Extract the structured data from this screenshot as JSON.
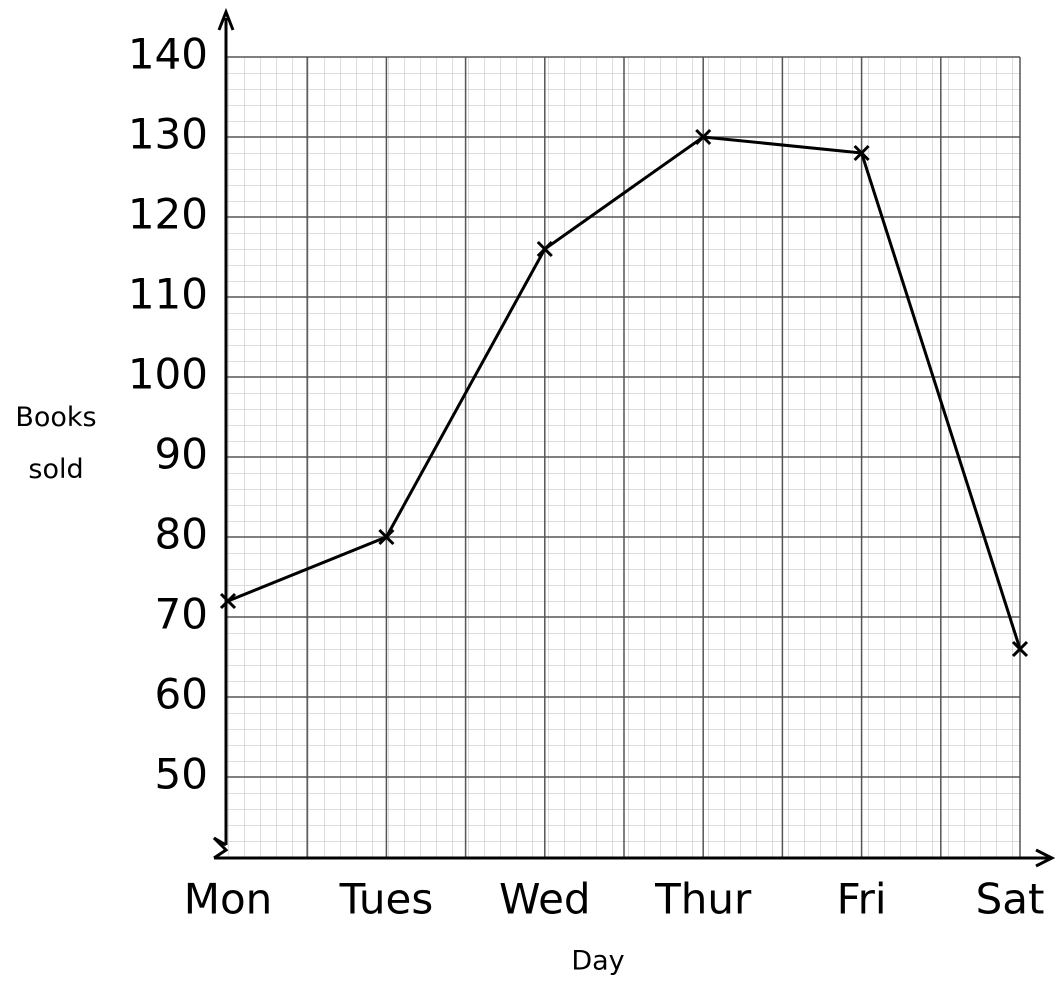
{
  "chart_data": {
    "type": "line",
    "x_label": "Day",
    "y_label": "Books sold",
    "categories": [
      "Mon",
      "Tues",
      "Wed",
      "Thur",
      "Fri",
      "Sat"
    ],
    "values": [
      72,
      80,
      116,
      130,
      128,
      66
    ],
    "color": "#000000",
    "ylim": [
      40,
      140
    ],
    "yticks": [
      50,
      60,
      70,
      80,
      90,
      100,
      110,
      120,
      130,
      140
    ],
    "grid": true
  }
}
